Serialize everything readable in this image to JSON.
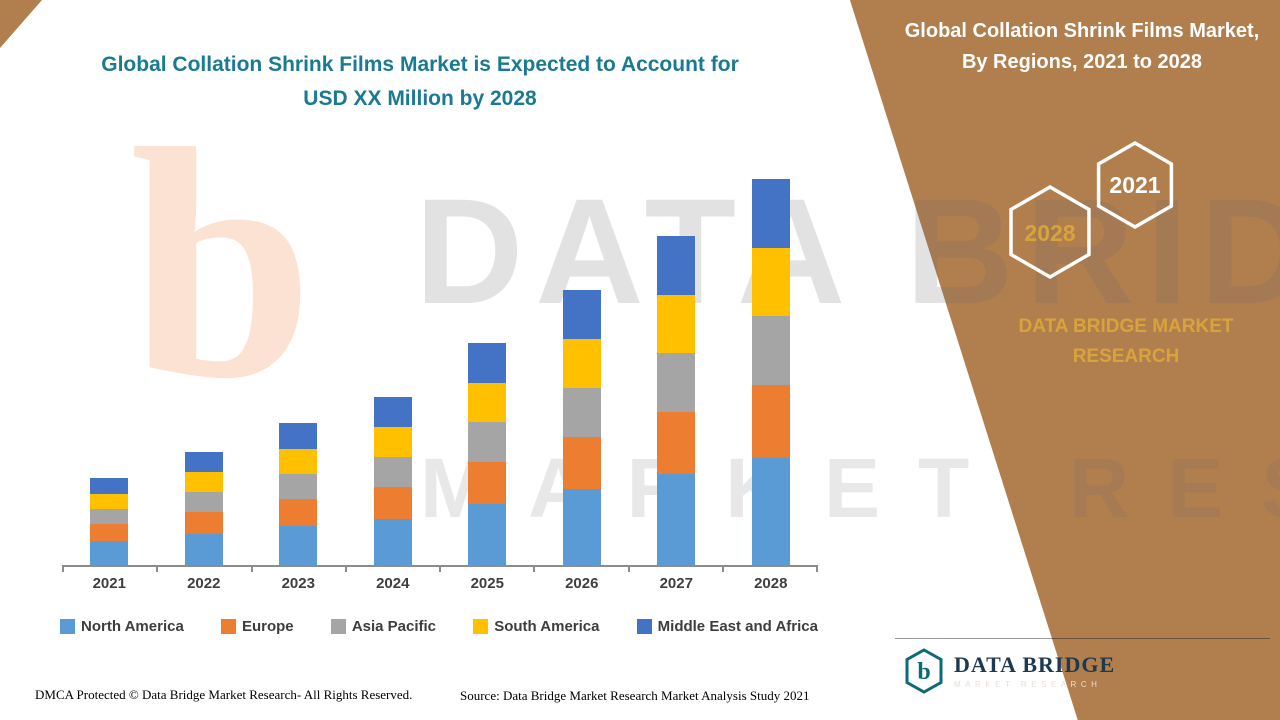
{
  "left": {
    "title_line1": "Global Collation Shrink Films Market is Expected to Account for",
    "title_line2": "USD XX Million by 2028"
  },
  "chart_data": {
    "type": "bar",
    "stacked": true,
    "title": "Global Collation Shrink Films Market is Expected to Account for USD XX Million by 2028",
    "xlabel": "",
    "ylabel": "",
    "y_axis_visible": false,
    "value_units": "relative index (actual USD Million values masked as XX in source)",
    "grid": false,
    "legend_position": "bottom",
    "categories": [
      "2021",
      "2022",
      "2023",
      "2024",
      "2025",
      "2026",
      "2027",
      "2028"
    ],
    "series": [
      {
        "name": "North America",
        "color": "#5B9BD5",
        "values": [
          24,
          31,
          39,
          46,
          61,
          76,
          91,
          107
        ]
      },
      {
        "name": "Europe",
        "color": "#ED7D31",
        "values": [
          17,
          22,
          27,
          32,
          42,
          52,
          62,
          73
        ]
      },
      {
        "name": "Asia Pacific",
        "color": "#A5A5A5",
        "values": [
          15,
          20,
          25,
          30,
          40,
          49,
          59,
          69
        ]
      },
      {
        "name": "South America",
        "color": "#FFC000",
        "values": [
          15,
          20,
          25,
          30,
          39,
          49,
          58,
          68
        ]
      },
      {
        "name": "Middle East and Africa",
        "color": "#4472C4",
        "values": [
          16,
          20,
          26,
          30,
          40,
          49,
          59,
          69
        ]
      }
    ],
    "totals": [
      87,
      113,
      142,
      168,
      222,
      275,
      329,
      386
    ],
    "ylim": [
      0,
      400
    ]
  },
  "footer": {
    "dmca": "DMCA Protected © Data Bridge Market Research- All Rights Reserved.",
    "source": "Source: Data Bridge Market Research Market Analysis Study 2021"
  },
  "right_panel": {
    "title": "Global Collation Shrink Films Market, By Regions, 2021 to 2028",
    "hex_back_label": "2028",
    "hex_front_label": "2021",
    "brand_text": "DATA BRIDGE MARKET RESEARCH",
    "logo": {
      "name": "DATA BRIDGE",
      "sub": "MARKET RESEARCH"
    },
    "colors": {
      "panel_brown": "#B17E4E",
      "gold": "#D9A33C",
      "title_teal": "#1B7A93",
      "logo_teal": "#0E6A78"
    }
  },
  "watermark": {
    "glyph": "b",
    "line1": "DATA BRIDGE",
    "line2": "MARKET RESEARCH"
  }
}
